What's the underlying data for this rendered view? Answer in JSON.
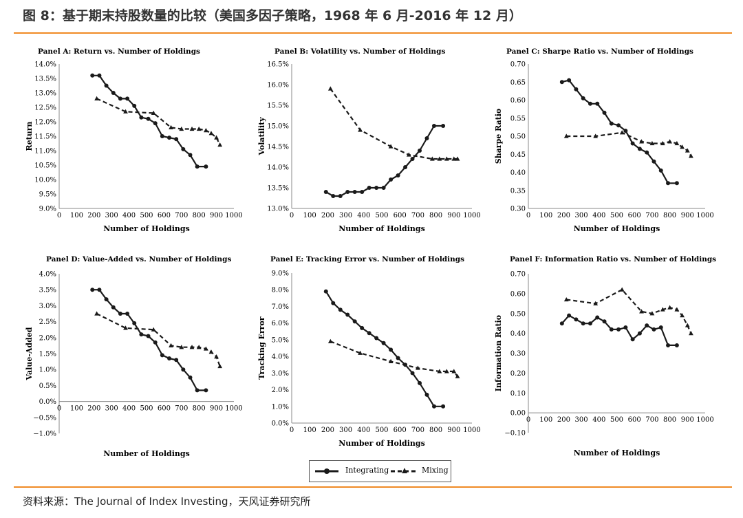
{
  "figure": {
    "title": "图 8：基于期末持股数量的比较（美国多因子策略，1968 年 6 月-2016 年 12 月）",
    "source": "资料来源：The Journal of Index Investing，天风证券研究所"
  },
  "colors": {
    "accent": "#f08a24",
    "line": "#1a1a1a"
  },
  "legend": {
    "integrating": "Integrating",
    "mixing": "Mixing"
  },
  "chart_data": [
    {
      "type": "line",
      "title": "Panel A: Return vs. Number of Holdings",
      "xlabel": "Number of Holdings",
      "ylabel": "Return",
      "xlim": [
        0,
        1000
      ],
      "ylim": [
        9.0,
        14.0
      ],
      "xticks": [
        "0",
        "100",
        "200",
        "300",
        "400",
        "500",
        "600",
        "700",
        "800",
        "900",
        "1000"
      ],
      "yticks": [
        "9.0%",
        "9.5%",
        "10.0%",
        "10.5%",
        "11.0%",
        "11.5%",
        "12.0%",
        "12.5%",
        "13.0%",
        "13.5%",
        "14.0%"
      ],
      "series": [
        {
          "name": "Integrating",
          "style": "solid",
          "x": [
            190,
            230,
            270,
            310,
            350,
            390,
            430,
            470,
            510,
            550,
            590,
            630,
            670,
            710,
            750,
            790,
            840
          ],
          "y": [
            13.6,
            13.6,
            13.25,
            13.0,
            12.8,
            12.8,
            12.55,
            12.15,
            12.1,
            11.95,
            11.5,
            11.45,
            11.4,
            11.05,
            10.85,
            10.45,
            10.45
          ]
        },
        {
          "name": "Mixing",
          "style": "dashed",
          "x": [
            215,
            380,
            540,
            640,
            700,
            760,
            800,
            840,
            870,
            900,
            920
          ],
          "y": [
            12.8,
            12.35,
            12.3,
            11.8,
            11.75,
            11.75,
            11.75,
            11.7,
            11.6,
            11.45,
            11.2
          ]
        }
      ]
    },
    {
      "type": "line",
      "title": "Panel B: Volatility vs. Number of Holdings",
      "xlabel": "Number of Holdings",
      "ylabel": "Volatility",
      "xlim": [
        0,
        1000
      ],
      "ylim": [
        13.0,
        16.5
      ],
      "xticks": [
        "0",
        "100",
        "200",
        "300",
        "400",
        "500",
        "600",
        "700",
        "800",
        "900",
        "1000"
      ],
      "yticks": [
        "13.0%",
        "13.5%",
        "14.0%",
        "14.5%",
        "15.0%",
        "15.5%",
        "16.0%",
        "16.5%"
      ],
      "series": [
        {
          "name": "Integrating",
          "style": "solid",
          "x": [
            190,
            230,
            270,
            310,
            350,
            390,
            430,
            470,
            510,
            550,
            590,
            630,
            670,
            710,
            750,
            790,
            840
          ],
          "y": [
            13.4,
            13.3,
            13.3,
            13.4,
            13.4,
            13.4,
            13.5,
            13.5,
            13.5,
            13.7,
            13.8,
            14.0,
            14.2,
            14.4,
            14.7,
            15.0,
            15.0
          ]
        },
        {
          "name": "Mixing",
          "style": "dashed",
          "x": [
            215,
            380,
            550,
            650,
            780,
            820,
            860,
            900,
            920
          ],
          "y": [
            15.9,
            14.9,
            14.5,
            14.3,
            14.2,
            14.2,
            14.2,
            14.2,
            14.2
          ]
        }
      ]
    },
    {
      "type": "line",
      "title": "Panel C: Sharpe Ratio vs. Number of Holdings",
      "xlabel": "Number of Holdings",
      "ylabel": "Sharpe Ratio",
      "xlim": [
        0,
        1000
      ],
      "ylim": [
        0.3,
        0.7
      ],
      "xticks": [
        "0",
        "100",
        "200",
        "300",
        "400",
        "500",
        "600",
        "700",
        "800",
        "900",
        "1000"
      ],
      "yticks": [
        "0.30",
        "0.35",
        "0.40",
        "0.45",
        "0.50",
        "0.55",
        "0.60",
        "0.65",
        "0.70"
      ],
      "series": [
        {
          "name": "Integrating",
          "style": "solid",
          "x": [
            190,
            230,
            270,
            310,
            350,
            390,
            430,
            470,
            510,
            550,
            590,
            630,
            670,
            710,
            750,
            790,
            840
          ],
          "y": [
            0.65,
            0.655,
            0.63,
            0.605,
            0.59,
            0.59,
            0.565,
            0.535,
            0.53,
            0.515,
            0.48,
            0.465,
            0.455,
            0.43,
            0.405,
            0.37,
            0.37
          ]
        },
        {
          "name": "Mixing",
          "style": "dashed",
          "x": [
            215,
            380,
            530,
            640,
            700,
            760,
            800,
            840,
            870,
            900,
            920
          ],
          "y": [
            0.5,
            0.5,
            0.51,
            0.485,
            0.48,
            0.48,
            0.485,
            0.48,
            0.47,
            0.46,
            0.445
          ]
        }
      ]
    },
    {
      "type": "line",
      "title": "Panel D: Value-Added vs. Number of Holdings",
      "xlabel": "Number of Holdings",
      "ylabel": "Value-Added",
      "xlim": [
        0,
        1000
      ],
      "ylim": [
        -1.0,
        4.0
      ],
      "xticks": [
        "0",
        "100",
        "200",
        "300",
        "400",
        "500",
        "600",
        "700",
        "800",
        "900",
        "1000"
      ],
      "yticks": [
        "−1.0%",
        "−0.5%",
        "0.0%",
        "0.5%",
        "1.0%",
        "1.5%",
        "2.0%",
        "2.5%",
        "3.0%",
        "3.5%",
        "4.0%"
      ],
      "series": [
        {
          "name": "Integrating",
          "style": "solid",
          "x": [
            190,
            230,
            270,
            310,
            350,
            390,
            430,
            470,
            510,
            550,
            590,
            630,
            670,
            710,
            750,
            790,
            840
          ],
          "y": [
            3.5,
            3.5,
            3.2,
            2.95,
            2.75,
            2.75,
            2.45,
            2.1,
            2.05,
            1.85,
            1.45,
            1.35,
            1.3,
            1.0,
            0.75,
            0.35,
            0.35
          ]
        },
        {
          "name": "Mixing",
          "style": "dashed",
          "x": [
            215,
            380,
            540,
            640,
            700,
            760,
            800,
            840,
            870,
            900,
            920
          ],
          "y": [
            2.75,
            2.3,
            2.25,
            1.75,
            1.7,
            1.7,
            1.7,
            1.65,
            1.55,
            1.4,
            1.1
          ]
        }
      ]
    },
    {
      "type": "line",
      "title": "Panel E: Tracking Error vs. Number of Holdings",
      "xlabel": "Number of Holdings",
      "ylabel": "Tracking Error",
      "xlim": [
        0,
        1000
      ],
      "ylim": [
        0.0,
        9.0
      ],
      "xticks": [
        "0",
        "100",
        "200",
        "300",
        "400",
        "500",
        "600",
        "700",
        "800",
        "900",
        "1000"
      ],
      "yticks": [
        "0.0%",
        "1.0%",
        "2.0%",
        "3.0%",
        "4.0%",
        "5.0%",
        "6.0%",
        "7.0%",
        "8.0%",
        "9.0%"
      ],
      "series": [
        {
          "name": "Integrating",
          "style": "solid",
          "x": [
            190,
            230,
            270,
            310,
            350,
            390,
            430,
            470,
            510,
            550,
            590,
            630,
            670,
            710,
            750,
            790,
            840
          ],
          "y": [
            7.9,
            7.2,
            6.8,
            6.5,
            6.1,
            5.7,
            5.4,
            5.1,
            4.8,
            4.4,
            3.9,
            3.5,
            3.0,
            2.4,
            1.7,
            1.0,
            1.0
          ]
        },
        {
          "name": "Mixing",
          "style": "dashed",
          "x": [
            215,
            380,
            550,
            700,
            820,
            860,
            900,
            920
          ],
          "y": [
            4.9,
            4.2,
            3.7,
            3.3,
            3.1,
            3.1,
            3.1,
            2.8
          ]
        }
      ]
    },
    {
      "type": "line",
      "title": "Panel F: Information Ratio vs. Number of Holdings",
      "xlabel": "Number of Holdings",
      "ylabel": "Information Ratio",
      "xlim": [
        0,
        1000
      ],
      "ylim": [
        -0.1,
        0.7
      ],
      "xticks": [
        "0",
        "100",
        "200",
        "300",
        "400",
        "500",
        "600",
        "700",
        "800",
        "900",
        "1000"
      ],
      "yticks": [
        "−0.10",
        "0.00",
        "0.10",
        "0.20",
        "0.30",
        "0.40",
        "0.50",
        "0.60",
        "0.70"
      ],
      "series": [
        {
          "name": "Integrating",
          "style": "solid",
          "x": [
            190,
            230,
            270,
            310,
            350,
            390,
            430,
            470,
            510,
            550,
            590,
            630,
            670,
            710,
            750,
            790,
            840
          ],
          "y": [
            0.45,
            0.49,
            0.47,
            0.45,
            0.45,
            0.48,
            0.46,
            0.42,
            0.42,
            0.43,
            0.37,
            0.4,
            0.44,
            0.42,
            0.43,
            0.34,
            0.34
          ]
        },
        {
          "name": "Mixing",
          "style": "dashed",
          "x": [
            215,
            380,
            530,
            640,
            700,
            760,
            800,
            840,
            870,
            900,
            920
          ],
          "y": [
            0.57,
            0.55,
            0.62,
            0.51,
            0.5,
            0.52,
            0.53,
            0.52,
            0.49,
            0.44,
            0.4
          ]
        }
      ]
    }
  ]
}
